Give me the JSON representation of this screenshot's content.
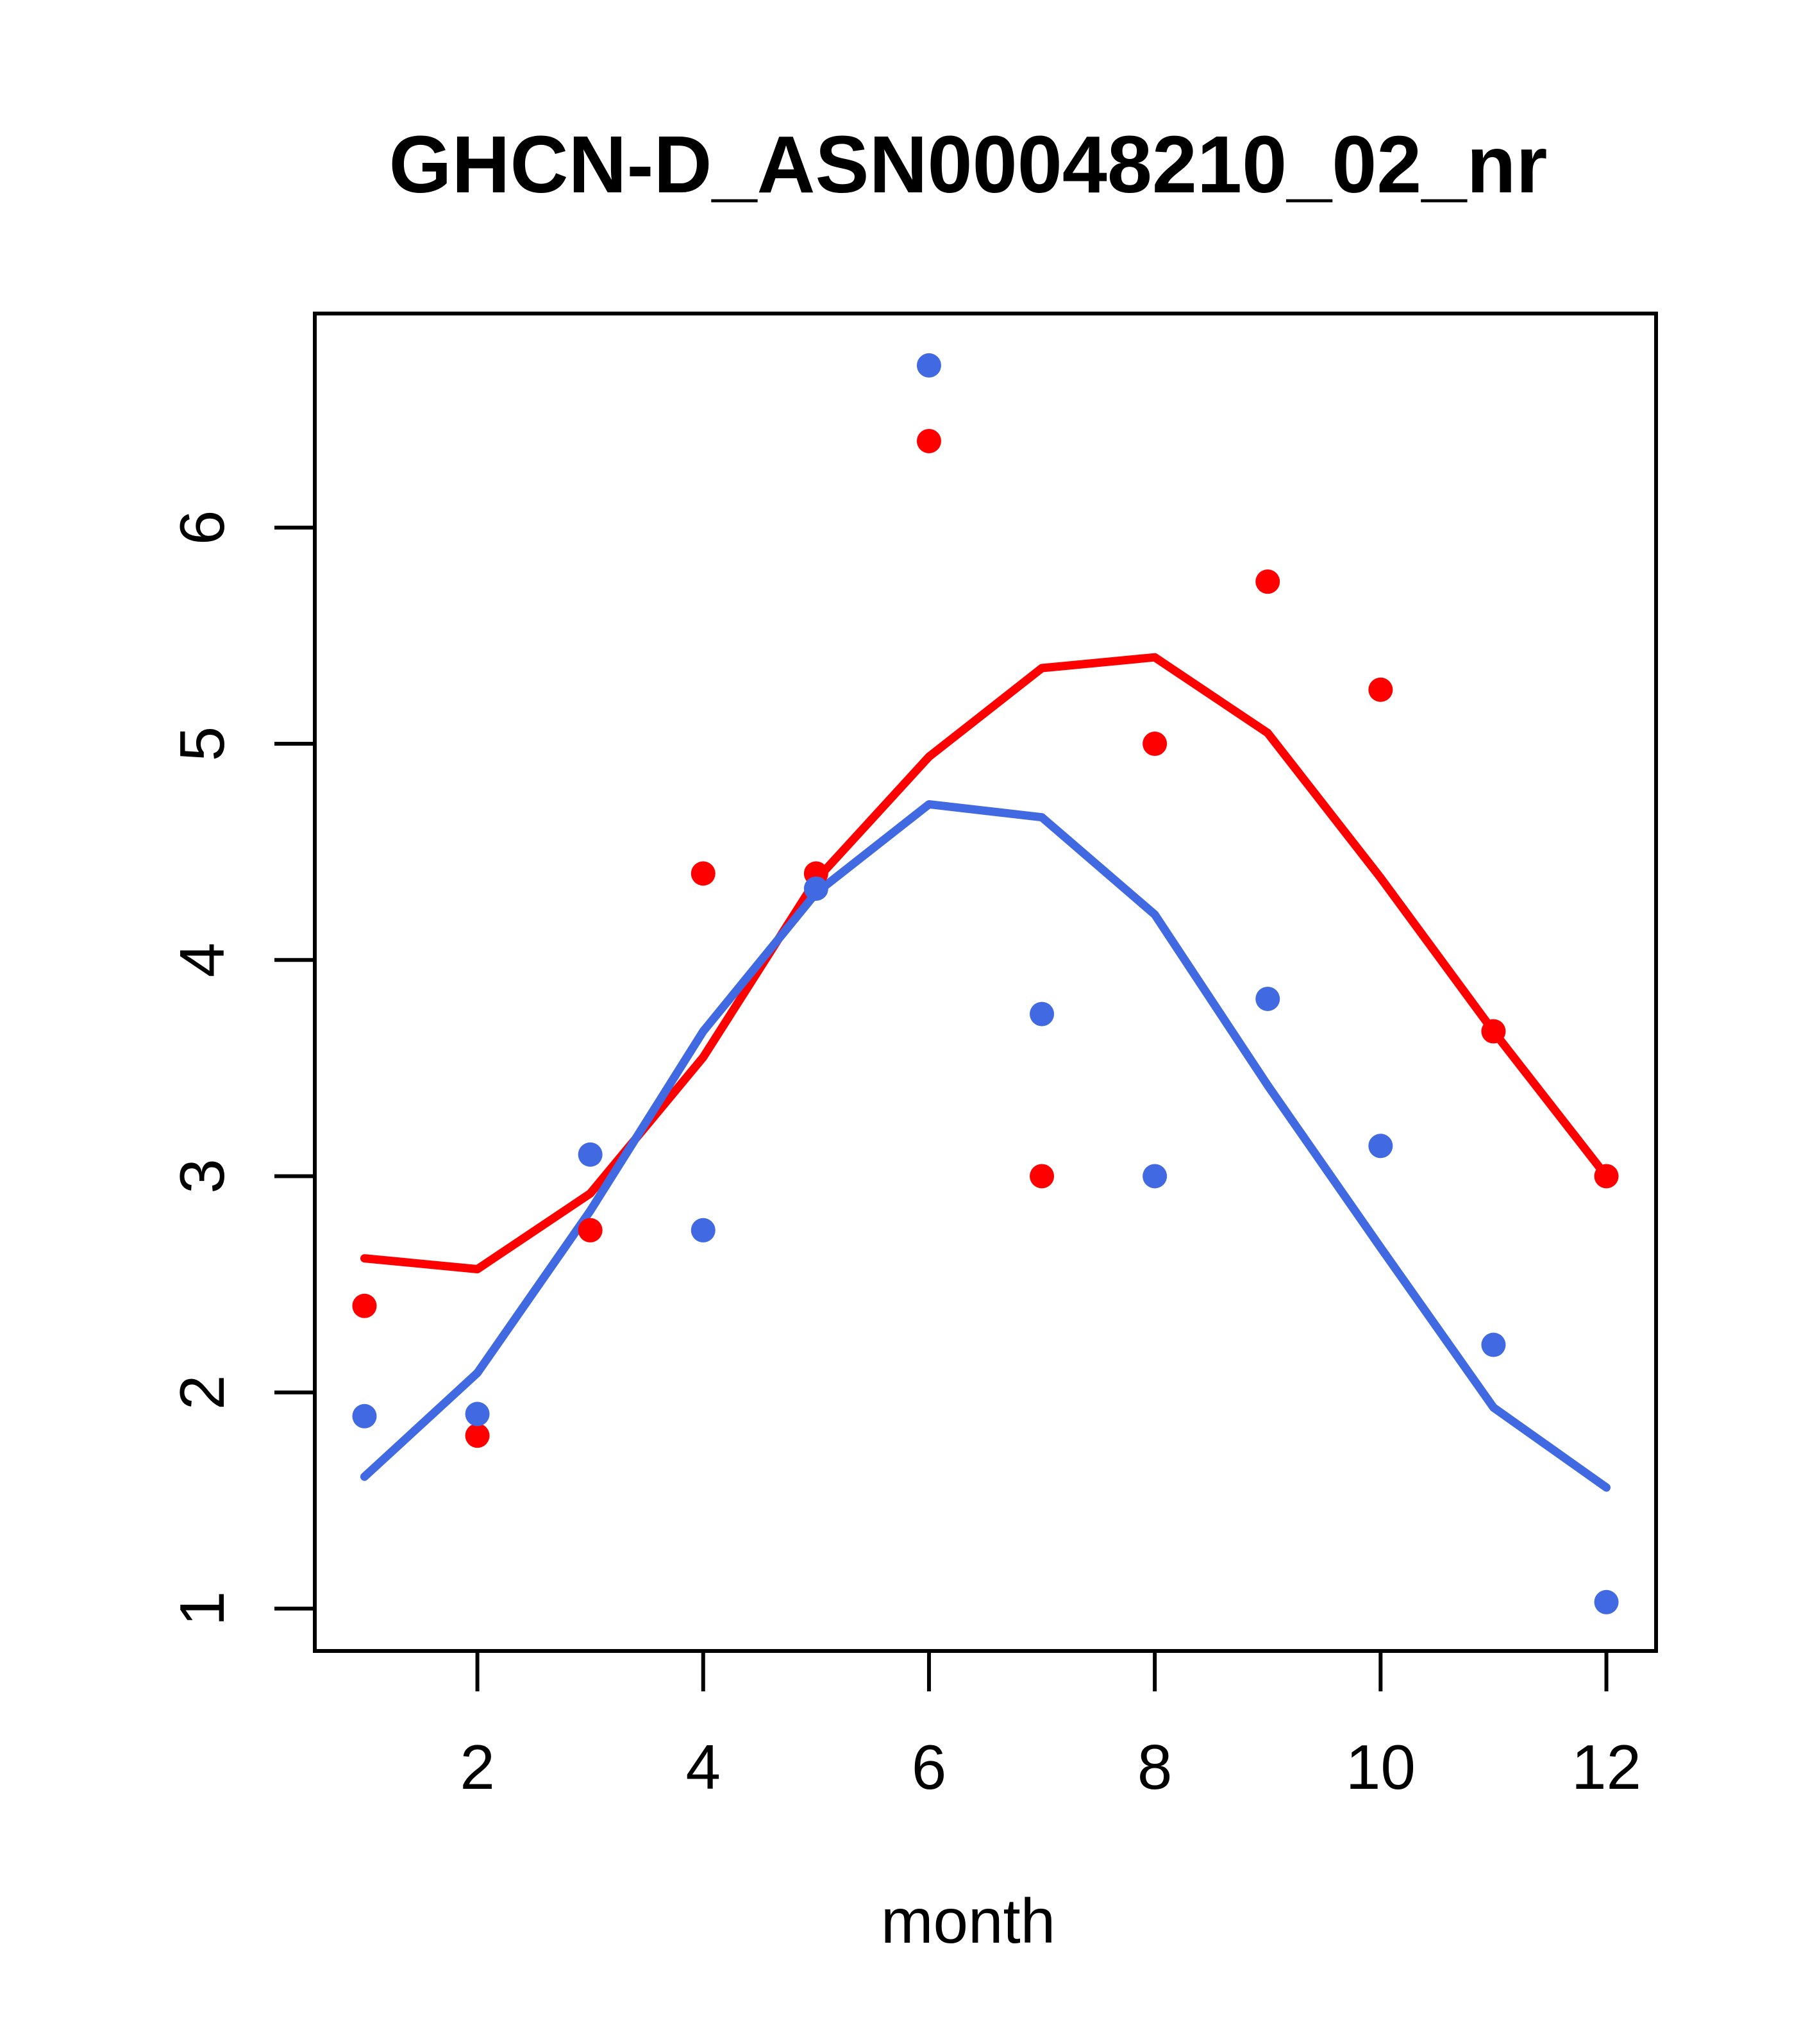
{
  "chart_data": {
    "type": "scatter",
    "title": "GHCN-D_ASN00048210_02_nr",
    "xlabel": "month",
    "ylabel": "",
    "grid": false,
    "legend": "none",
    "xlim": [
      0.56,
      12.44
    ],
    "ylim": [
      0.804,
      6.99
    ],
    "x_ticks": [
      2,
      4,
      6,
      8,
      10,
      12
    ],
    "y_ticks": [
      1,
      2,
      3,
      4,
      5,
      6
    ],
    "x": [
      1,
      2,
      3,
      4,
      5,
      6,
      7,
      8,
      9,
      10,
      11,
      12
    ],
    "colors": {
      "red": "#ff0000",
      "blue": "#4169e1",
      "axis": "#000000"
    },
    "series": [
      {
        "name": "red-points",
        "type": "scatter",
        "color": "#ff0000",
        "values": [
          2.4,
          1.8,
          2.75,
          4.4,
          4.4,
          6.4,
          3.0,
          5.0,
          5.75,
          5.25,
          3.67,
          3.0
        ]
      },
      {
        "name": "blue-points",
        "type": "scatter",
        "color": "#4169e1",
        "values": [
          1.89,
          1.9,
          3.1,
          2.75,
          4.33,
          6.75,
          3.75,
          3.0,
          3.82,
          3.14,
          2.22,
          1.03
        ]
      },
      {
        "name": "red-trend-line",
        "type": "line",
        "color": "#ff0000",
        "values": [
          2.62,
          2.57,
          2.92,
          3.55,
          4.37,
          4.94,
          5.35,
          5.4,
          5.05,
          4.38,
          3.67,
          3.0
        ]
      },
      {
        "name": "blue-trend-line",
        "type": "line",
        "color": "#4169e1",
        "values": [
          1.61,
          2.09,
          2.84,
          3.67,
          4.31,
          4.72,
          4.66,
          4.21,
          3.42,
          2.67,
          1.93,
          1.56
        ]
      }
    ]
  }
}
